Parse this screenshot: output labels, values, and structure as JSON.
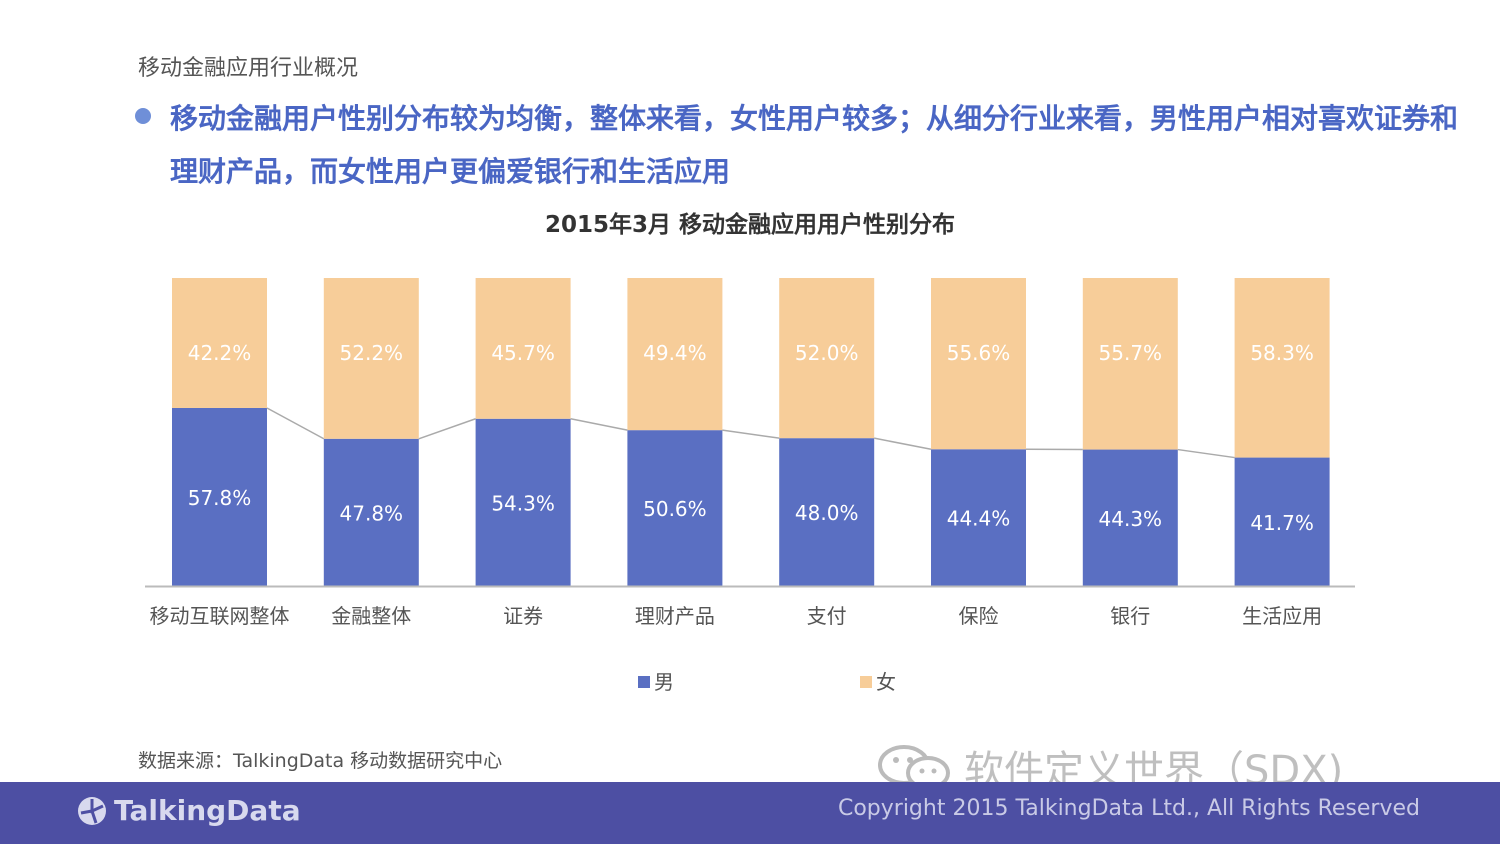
{
  "page": {
    "section_title": "移动金融应用行业概况",
    "headline": "移动金融用户性别分布较为均衡，整体来看，女性用户较多；从细分行业来看，男性用户相对喜欢证券和理财产品，而女性用户更偏爱银行和生活应用",
    "source": "数据来源：TalkingData 移动数据研究中心",
    "watermark": "软件定义世界（SDX)",
    "logo_text": "TalkingData",
    "copyright": "Copyright 2015 TalkingData Ltd., All Rights Reserved"
  },
  "colors": {
    "male": "#5a6fc2",
    "female": "#f7cd99",
    "accent": "#4a66c4",
    "footer": "#4d4fa3"
  },
  "chart_data": {
    "type": "bar",
    "stacked": true,
    "title": "2015年3月 移动金融应用用户性别分布",
    "categories": [
      "移动互联网整体",
      "金融整体",
      "证券",
      "理财产品",
      "支付",
      "保险",
      "银行",
      "生活应用"
    ],
    "series": [
      {
        "name": "男",
        "values": [
          57.8,
          47.8,
          54.3,
          50.6,
          48.0,
          44.4,
          44.3,
          41.7
        ],
        "labels": [
          "57.8%",
          "47.8%",
          "54.3%",
          "50.6%",
          "48.0%",
          "44.4%",
          "44.3%",
          "41.7%"
        ]
      },
      {
        "name": "女",
        "values": [
          42.2,
          52.2,
          45.7,
          49.4,
          52.0,
          55.6,
          55.7,
          58.3
        ],
        "labels": [
          "42.2%",
          "52.2%",
          "45.7%",
          "49.4%",
          "52.0%",
          "55.6%",
          "55.7%",
          "58.3%"
        ]
      }
    ],
    "ylim": [
      0,
      100
    ],
    "legend_position": "bottom",
    "series_lines": true,
    "grid": false
  }
}
